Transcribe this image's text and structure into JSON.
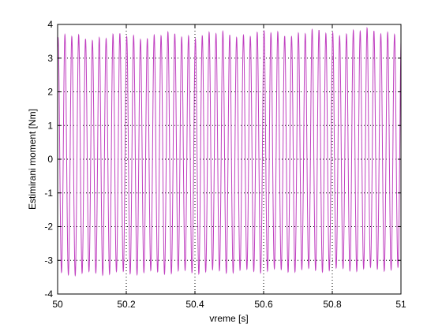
{
  "chart_data": {
    "type": "line",
    "xlabel": "vreme [s]",
    "ylabel": "Estimirani moment [Nm]",
    "xlim": [
      50,
      51
    ],
    "ylim": [
      -4,
      4
    ],
    "xticks": [
      50,
      50.2,
      50.4,
      50.6,
      50.8,
      51
    ],
    "xtick_labels": [
      "50",
      "50.2",
      "50.4",
      "50.6",
      "50.8",
      "51"
    ],
    "yticks": [
      4,
      3,
      2,
      1,
      0,
      -1,
      -2,
      -3,
      -4
    ],
    "ytick_labels": [
      "4",
      "3",
      "2",
      "1",
      "0",
      "-1",
      "-2",
      "-3",
      "-4"
    ],
    "grid": true,
    "line_color": "#c040c0",
    "series": [
      {
        "waveform": "near-sinusoidal oscillation",
        "cycles_in_window": 50,
        "frequency_hz": 50,
        "start_time": 50,
        "end_time": 51,
        "peak_start": 3.6,
        "peak_end": 3.8,
        "trough_start": -3.4,
        "trough_end": -3.25,
        "initial_value": 3.3,
        "final_value": -3.3
      }
    ]
  }
}
